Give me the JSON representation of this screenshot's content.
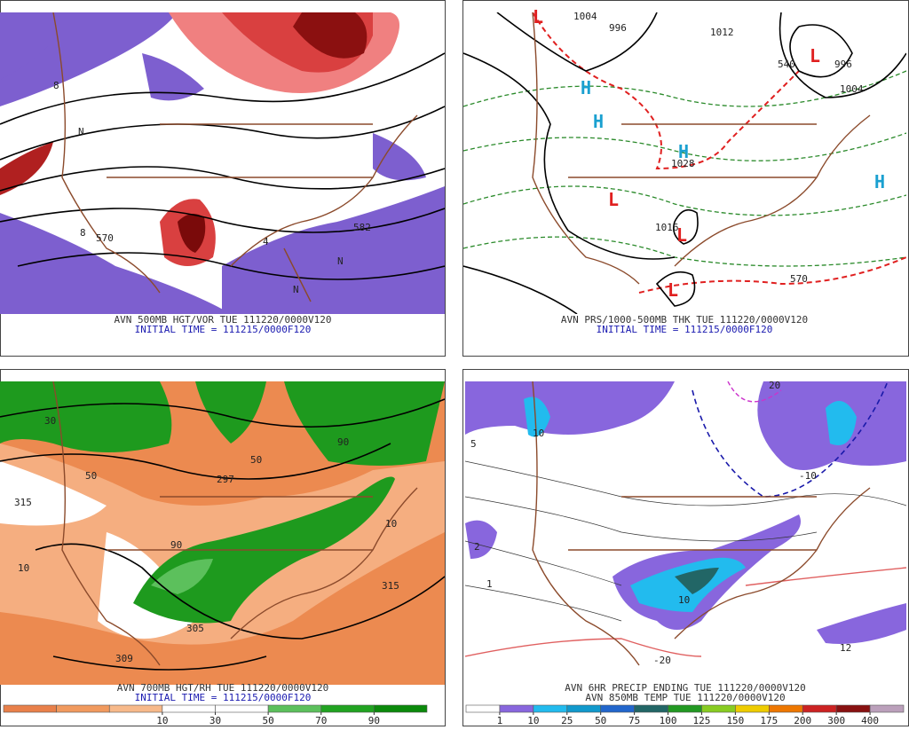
{
  "panels": [
    {
      "caption": [
        "AVN 500MB HGT/VOR TUE 111220/0000V120",
        "INITIAL TIME = 111215/0000F120"
      ],
      "labels": [
        "570",
        "582",
        "N",
        "N",
        "8",
        "4",
        "8",
        "N"
      ]
    },
    {
      "caption": [
        "AVN PRS/1000-500MB THK TUE 111220/0000V120",
        "INITIAL TIME = 111215/0000F120"
      ],
      "labels": [
        "H",
        "H",
        "H",
        "H",
        "L",
        "L",
        "L",
        "L",
        "L",
        "1004",
        "996",
        "1012",
        "1028",
        "1016",
        "570",
        "540",
        "996",
        "1004"
      ]
    },
    {
      "caption": [
        "AVN 700MB HGT/RH TUE 111220/0000V120",
        "INITIAL TIME = 111215/0000F120"
      ],
      "labels": [
        "315",
        "297",
        "309",
        "305",
        "50",
        "50",
        "10",
        "10",
        "90",
        "90",
        "30",
        "315"
      ],
      "colorbar": {
        "ticks": [
          10,
          30,
          50,
          70,
          90
        ],
        "colors": [
          "#e9804a",
          "#f19a5e",
          "#f7b98a",
          "#ffffff",
          "#ffffff",
          "#5cc05c",
          "#21a321",
          "#0b8a0b"
        ]
      }
    },
    {
      "caption": [
        "AVN 6HR PRECIP ENDING TUE 111220/0000V120",
        "AVN 850MB TEMP TUE 111220/0000V120"
      ],
      "labels": [
        "10",
        "-10",
        "-20",
        "12",
        "2",
        "1",
        "5",
        "20",
        "10"
      ],
      "colorbar": {
        "ticks": [
          1,
          10,
          25,
          50,
          75,
          100,
          125,
          150,
          175,
          200,
          300,
          400
        ],
        "colors": [
          "#ffffff",
          "#8866dd",
          "#22bbee",
          "#1199cc",
          "#2266cc",
          "#226666",
          "#229922",
          "#88cc22",
          "#eecc00",
          "#ee7700",
          "#cc2222",
          "#881111",
          "#bba0bb"
        ]
      }
    }
  ]
}
